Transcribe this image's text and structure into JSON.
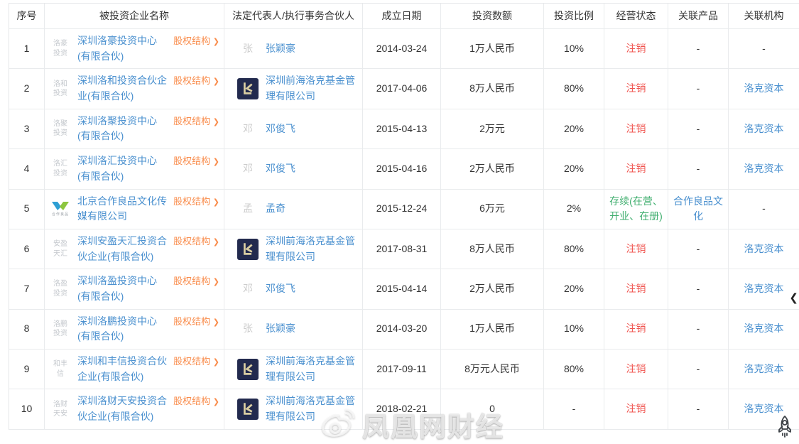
{
  "table": {
    "columns": [
      {
        "id": "seq",
        "label": "序号"
      },
      {
        "id": "company",
        "label": "被投资企业名称"
      },
      {
        "id": "rep",
        "label": "法定代表人/执行事务合伙人"
      },
      {
        "id": "date",
        "label": "成立日期"
      },
      {
        "id": "amount",
        "label": "投资数额"
      },
      {
        "id": "ratio",
        "label": "投资比例"
      },
      {
        "id": "status",
        "label": "经营状态"
      },
      {
        "id": "product",
        "label": "关联产品"
      },
      {
        "id": "org",
        "label": "关联机构"
      }
    ],
    "equity_link_label": "股权结构",
    "equity_link_chevron": "❯",
    "rows": [
      {
        "seq": "1",
        "company": {
          "abbr": "洛豪\n投资",
          "logo": "text",
          "name": "深圳洛豪投资中心(有限合伙)"
        },
        "rep": {
          "type": "text",
          "avatar": "张",
          "name": "张颖豪"
        },
        "date": "2014-03-24",
        "amount": "1万人民币",
        "ratio": "10%",
        "status": {
          "text": "注销",
          "state": "cancelled"
        },
        "product": {
          "text": "-",
          "link": false
        },
        "org": {
          "text": "-",
          "link": false
        }
      },
      {
        "seq": "2",
        "company": {
          "abbr": "洛和\n投资",
          "logo": "text",
          "name": "深圳洛和投资合伙企业(有限合伙)"
        },
        "rep": {
          "type": "logo",
          "name": "深圳前海洛克基金管理有限公司"
        },
        "date": "2017-04-06",
        "amount": "8万人民币",
        "ratio": "80%",
        "status": {
          "text": "注销",
          "state": "cancelled"
        },
        "product": {
          "text": "-",
          "link": false
        },
        "org": {
          "text": "洛克资本",
          "link": true
        }
      },
      {
        "seq": "3",
        "company": {
          "abbr": "洛聚\n投资",
          "logo": "text",
          "name": "深圳洛聚投资中心(有限合伙)"
        },
        "rep": {
          "type": "text",
          "avatar": "邓",
          "name": "邓俊飞"
        },
        "date": "2015-04-13",
        "amount": "2万元",
        "ratio": "20%",
        "status": {
          "text": "注销",
          "state": "cancelled"
        },
        "product": {
          "text": "-",
          "link": false
        },
        "org": {
          "text": "洛克资本",
          "link": true
        }
      },
      {
        "seq": "4",
        "company": {
          "abbr": "洛汇\n投资",
          "logo": "text",
          "name": "深圳洛汇投资中心(有限合伙)"
        },
        "rep": {
          "type": "text",
          "avatar": "邓",
          "name": "邓俊飞"
        },
        "date": "2015-04-16",
        "amount": "2万人民币",
        "ratio": "20%",
        "status": {
          "text": "注销",
          "state": "cancelled"
        },
        "product": {
          "text": "-",
          "link": false
        },
        "org": {
          "text": "洛克资本",
          "link": true
        }
      },
      {
        "seq": "5",
        "company": {
          "abbr": "",
          "logo": "hezuo",
          "name": "北京合作良品文化传媒有限公司"
        },
        "rep": {
          "type": "text",
          "avatar": "孟",
          "name": "孟奇"
        },
        "date": "2015-12-24",
        "amount": "6万元",
        "ratio": "2%",
        "status": {
          "text": "存续(在营、开业、在册)",
          "state": "active"
        },
        "product": {
          "text": "合作良品文化",
          "link": true
        },
        "org": {
          "text": "-",
          "link": false
        }
      },
      {
        "seq": "6",
        "company": {
          "abbr": "安盈\n天汇",
          "logo": "text",
          "name": "深圳安盈天汇投资合伙企业(有限合伙)"
        },
        "rep": {
          "type": "logo",
          "name": "深圳前海洛克基金管理有限公司"
        },
        "date": "2017-08-31",
        "amount": "8万人民币",
        "ratio": "80%",
        "status": {
          "text": "注销",
          "state": "cancelled"
        },
        "product": {
          "text": "-",
          "link": false
        },
        "org": {
          "text": "洛克资本",
          "link": true
        }
      },
      {
        "seq": "7",
        "company": {
          "abbr": "洛盈\n投资",
          "logo": "text",
          "name": "深圳洛盈投资中心(有限合伙)"
        },
        "rep": {
          "type": "text",
          "avatar": "邓",
          "name": "邓俊飞"
        },
        "date": "2015-04-14",
        "amount": "2万人民币",
        "ratio": "20%",
        "status": {
          "text": "注销",
          "state": "cancelled"
        },
        "product": {
          "text": "-",
          "link": false
        },
        "org": {
          "text": "洛克资本",
          "link": true
        }
      },
      {
        "seq": "8",
        "company": {
          "abbr": "洛鹏\n投资",
          "logo": "text",
          "name": "深圳洛鹏投资中心(有限合伙)"
        },
        "rep": {
          "type": "text",
          "avatar": "张",
          "name": "张颖豪"
        },
        "date": "2014-03-20",
        "amount": "1万人民币",
        "ratio": "10%",
        "status": {
          "text": "注销",
          "state": "cancelled"
        },
        "product": {
          "text": "-",
          "link": false
        },
        "org": {
          "text": "洛克资本",
          "link": true
        }
      },
      {
        "seq": "9",
        "company": {
          "abbr": "和丰\n信",
          "logo": "text",
          "name": "深圳和丰信投资合伙企业(有限合伙)"
        },
        "rep": {
          "type": "logo",
          "name": "深圳前海洛克基金管理有限公司"
        },
        "date": "2017-09-11",
        "amount": "8万元人民币",
        "ratio": "80%",
        "status": {
          "text": "注销",
          "state": "cancelled"
        },
        "product": {
          "text": "-",
          "link": false
        },
        "org": {
          "text": "洛克资本",
          "link": true
        }
      },
      {
        "seq": "10",
        "company": {
          "abbr": "洛财\n天安",
          "logo": "text",
          "name": "深圳洛财天安投资合伙企业(有限合伙)"
        },
        "rep": {
          "type": "logo",
          "name": "深圳前海洛克基金管理有限公司"
        },
        "date": "2018-02-21",
        "amount": "0",
        "ratio": "-",
        "status": {
          "text": "注销",
          "state": "cancelled"
        },
        "product": {
          "text": "-",
          "link": false
        },
        "org": {
          "text": "洛克资本",
          "link": true
        }
      }
    ]
  },
  "watermark": {
    "text": "凤凰网财经"
  },
  "floating": {
    "collapse_chevron": "❮"
  },
  "colors": {
    "link_blue": "#4a90cf",
    "equity_orange": "#f98b4a",
    "status_red": "#f0544f",
    "status_green": "#3fae6e",
    "klogo_bg": "#222a4e",
    "klogo_glyph": "#d9cda1",
    "border": "#e9ebed"
  }
}
